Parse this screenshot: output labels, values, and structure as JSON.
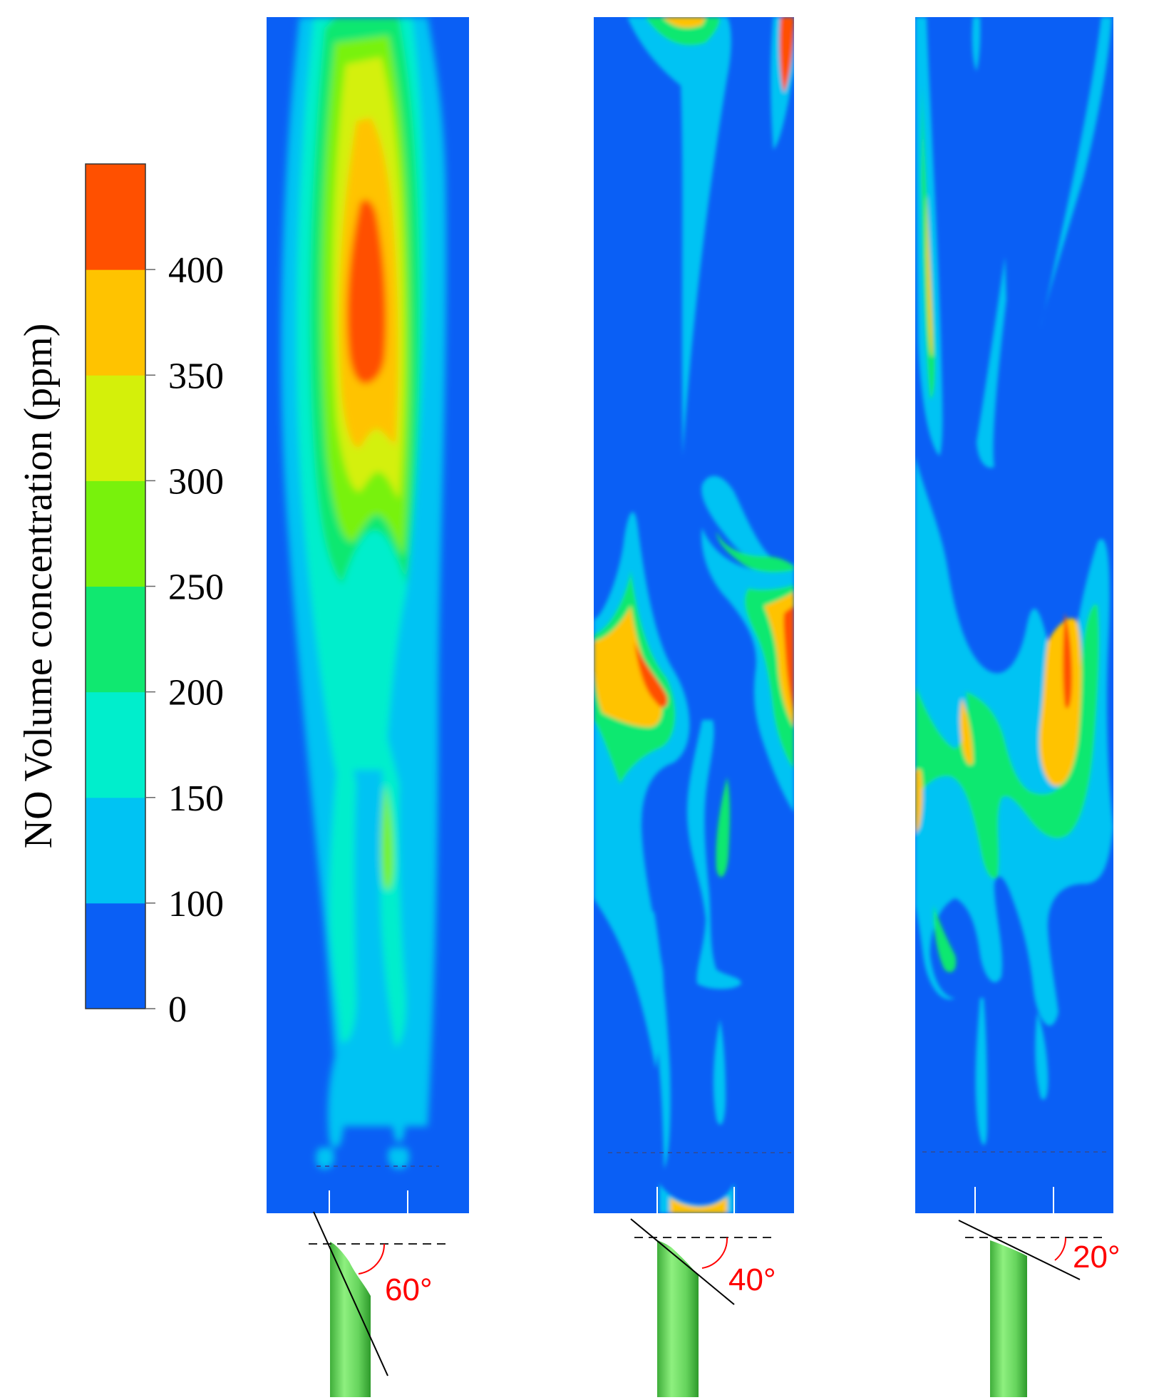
{
  "colorbar": {
    "title": "NO Volume concentration (ppm)",
    "ticks": [
      "0",
      "100",
      "150",
      "200",
      "250",
      "300",
      "350",
      "400"
    ],
    "bands": [
      {
        "color": "#0a5ff5"
      },
      {
        "color": "#00c3f3"
      },
      {
        "color": "#00eecc"
      },
      {
        "color": "#10e870"
      },
      {
        "color": "#78f20c"
      },
      {
        "color": "#d4f00a"
      },
      {
        "color": "#ffc300"
      },
      {
        "color": "#ff5000"
      }
    ]
  },
  "panels": [
    {
      "angle_label": "60°"
    },
    {
      "angle_label": "40°"
    },
    {
      "angle_label": "20°"
    }
  ],
  "colors": {
    "background_field": "#0a5ff5",
    "nozzle": "#6fdc6a",
    "angle_annotation": "#ff0000"
  }
}
